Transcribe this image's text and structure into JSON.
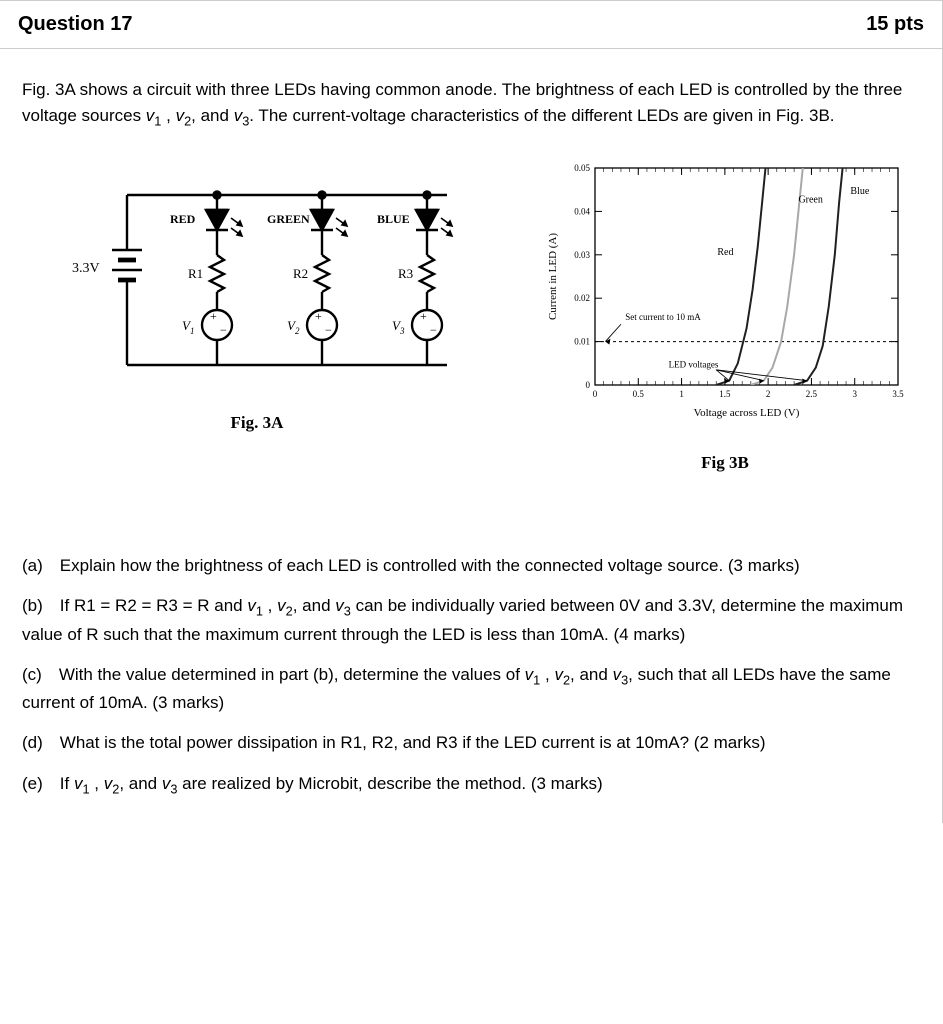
{
  "header": {
    "title": "Question 17",
    "points": "15 pts"
  },
  "intro": {
    "line1_a": "Fig. 3A shows a circuit with three LEDs having common anode. The brightness of each LED is ",
    "line1_b": "controlled by the three voltage sources ",
    "v1": "v",
    "s1": "1",
    "sep1": " , ",
    "v2": "v",
    "s2": "2",
    "sep2": ", and ",
    "v3": "v",
    "s3": "3",
    "line1_c": ". The current-voltage characteristics of the ",
    "line1_d": "different LEDs are given in Fig. 3B."
  },
  "circuit": {
    "supply": "3.3V",
    "led_red": "RED",
    "led_green": "GREEN",
    "led_blue": "BLUE",
    "R1": "R1",
    "R2": "R2",
    "R3": "R3",
    "V1": "V",
    "V1s": "1",
    "V2": "V",
    "V2s": "2",
    "V3": "V",
    "V3s": "3",
    "caption": "Fig. 3A"
  },
  "chart": {
    "caption": "Fig 3B",
    "xlabel": "Voltage across LED (V)",
    "ylabel": "Current in LED (A)",
    "xlim": [
      0,
      3.5
    ],
    "ylim": [
      0,
      0.05
    ],
    "xticks": [
      "0",
      "0.5",
      "1",
      "1.5",
      "2",
      "2.5",
      "3",
      "3.5"
    ],
    "yticks": [
      "0",
      "0.01",
      "0.02",
      "0.03",
      "0.04",
      "0.05"
    ],
    "note1": "Set current to 10 mA",
    "note2": "LED voltages",
    "label_red": "Red",
    "label_green": "Green",
    "label_blue": "Blue",
    "series": {
      "red": [
        [
          1.4,
          0
        ],
        [
          1.55,
          0.001
        ],
        [
          1.65,
          0.005
        ],
        [
          1.75,
          0.013
        ],
        [
          1.82,
          0.022
        ],
        [
          1.88,
          0.032
        ],
        [
          1.93,
          0.042
        ],
        [
          1.97,
          0.05
        ]
      ],
      "green": [
        [
          1.8,
          0
        ],
        [
          1.95,
          0.001
        ],
        [
          2.05,
          0.004
        ],
        [
          2.15,
          0.01
        ],
        [
          2.22,
          0.018
        ],
        [
          2.3,
          0.03
        ],
        [
          2.36,
          0.042
        ],
        [
          2.4,
          0.05
        ]
      ],
      "blue": [
        [
          2.3,
          0
        ],
        [
          2.45,
          0.001
        ],
        [
          2.55,
          0.004
        ],
        [
          2.63,
          0.009
        ],
        [
          2.7,
          0.018
        ],
        [
          2.77,
          0.03
        ],
        [
          2.82,
          0.042
        ],
        [
          2.86,
          0.05
        ]
      ]
    },
    "set_current": 0.01,
    "colors": {
      "axis": "#000000",
      "grid": "#000000",
      "red": "#202020",
      "green": "#a8a8a8",
      "blue": "#202020",
      "dash": "#000000",
      "bg": "#ffffff"
    },
    "font": {
      "tick": 9,
      "label": 11,
      "note": 9,
      "series_label": 10
    }
  },
  "parts": {
    "a_pre": "(a) Explain how the brightness of each LED is controlled with the connected voltage source. (3 marks)",
    "b_pre": "(b) If R1 = R2 = R3 = R and ",
    "b_mid": " can be individually varied between 0V and 3.3V, determine the maximum value of R such that the maximum current through the LED is less than 10mA. (4 marks)",
    "c_pre": "(c) With the value determined in part (b), determine the values of ",
    "c_mid": ", such that all LEDs have the same current of 10mA. (3 marks)",
    "d": "(d) What is the total power dissipation in R1, R2, and R3 if the LED current is at 10mA? (2 marks)",
    "e_pre": "(e) If ",
    "e_mid": " are realized by Microbit, describe the method. (3 marks)",
    "vlist_sep1": " , ",
    "vlist_sep2": ", and "
  }
}
